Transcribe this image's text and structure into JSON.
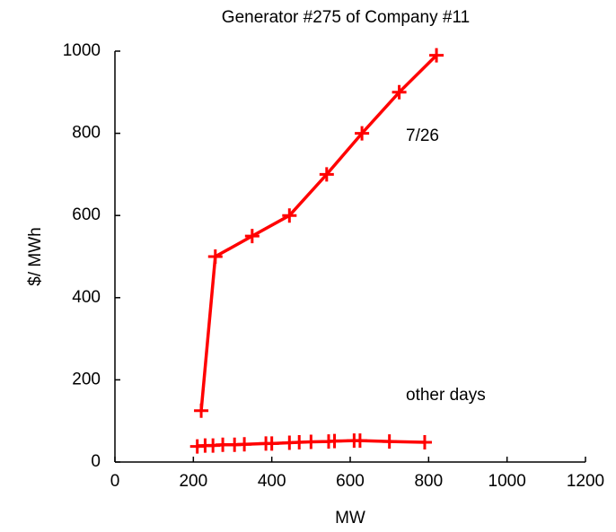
{
  "chart_data": {
    "type": "line",
    "title": "Generator #275 of Company #11",
    "x_label": "MW",
    "y_label": "$/ MWh",
    "xlim": [
      0,
      1200
    ],
    "xticks": [
      0,
      200,
      400,
      600,
      800,
      1000,
      1200
    ],
    "ylim": [
      0,
      1000
    ],
    "yticks": [
      0,
      200,
      400,
      600,
      800,
      1000
    ],
    "grid": false,
    "series": [
      {
        "name": "7/26",
        "color": "#ff0000",
        "x": [
          220,
          256,
          350,
          445,
          540,
          630,
          725,
          820
        ],
        "values": [
          125,
          500,
          550,
          600,
          700,
          800,
          900,
          990
        ]
      },
      {
        "name": "other days",
        "color": "#ff0000",
        "x": [
          210,
          230,
          250,
          275,
          305,
          330,
          385,
          400,
          445,
          470,
          500,
          545,
          560,
          610,
          625,
          700,
          790
        ],
        "values": [
          38,
          40,
          40,
          42,
          42,
          43,
          45,
          45,
          47,
          48,
          49,
          50,
          51,
          52,
          52,
          50,
          48
        ]
      }
    ]
  }
}
